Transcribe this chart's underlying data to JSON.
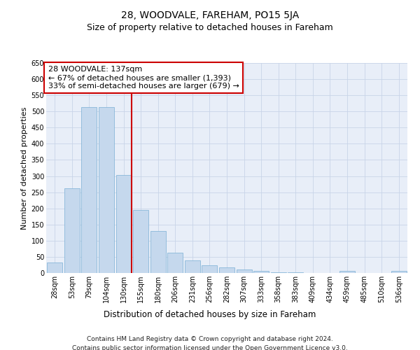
{
  "title": "28, WOODVALE, FAREHAM, PO15 5JA",
  "subtitle": "Size of property relative to detached houses in Fareham",
  "xlabel": "Distribution of detached houses by size in Fareham",
  "ylabel": "Number of detached properties",
  "categories": [
    "28sqm",
    "53sqm",
    "79sqm",
    "104sqm",
    "130sqm",
    "155sqm",
    "180sqm",
    "206sqm",
    "231sqm",
    "256sqm",
    "282sqm",
    "307sqm",
    "333sqm",
    "358sqm",
    "383sqm",
    "409sqm",
    "434sqm",
    "459sqm",
    "485sqm",
    "510sqm",
    "536sqm"
  ],
  "values": [
    33,
    262,
    513,
    513,
    303,
    196,
    131,
    62,
    38,
    24,
    18,
    10,
    7,
    3,
    3,
    1,
    0,
    6,
    0,
    1,
    6
  ],
  "bar_color": "#c5d8ed",
  "bar_edge_color": "#7aafd4",
  "vline_x": 4,
  "vline_color": "#cc0000",
  "annotation_text": "28 WOODVALE: 137sqm\n← 67% of detached houses are smaller (1,393)\n33% of semi-detached houses are larger (679) →",
  "annotation_box_color": "#ffffff",
  "annotation_box_edge_color": "#cc0000",
  "ylim": [
    0,
    650
  ],
  "yticks": [
    0,
    50,
    100,
    150,
    200,
    250,
    300,
    350,
    400,
    450,
    500,
    550,
    600,
    650
  ],
  "grid_color": "#c8d4e8",
  "bg_color": "#e8eef8",
  "footer_line1": "Contains HM Land Registry data © Crown copyright and database right 2024.",
  "footer_line2": "Contains public sector information licensed under the Open Government Licence v3.0.",
  "title_fontsize": 10,
  "subtitle_fontsize": 9,
  "tick_fontsize": 7,
  "ylabel_fontsize": 8,
  "xlabel_fontsize": 8.5,
  "annotation_fontsize": 8,
  "footer_fontsize": 6.5
}
